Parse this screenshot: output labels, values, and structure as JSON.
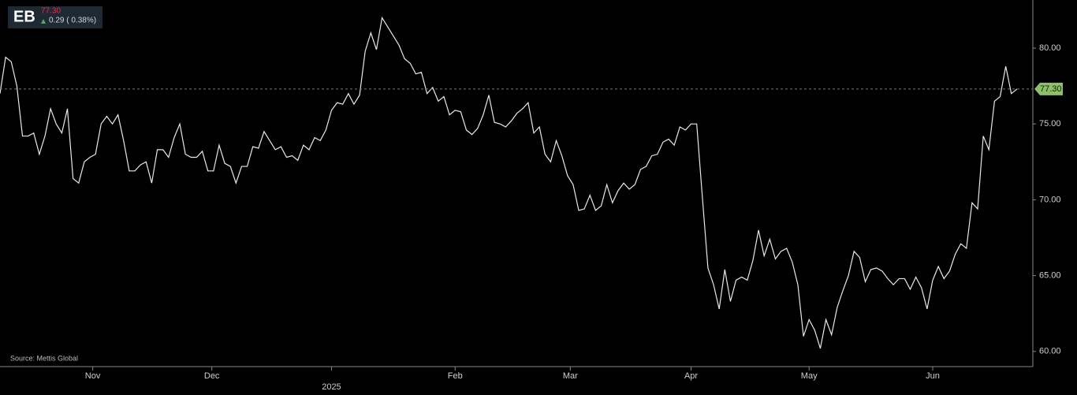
{
  "chart_data": {
    "type": "line",
    "ticker": "EB",
    "price": "77.30",
    "change": "0.29 ( 0.38%)",
    "source": "Source: Mettis Global",
    "series": [
      {
        "name": "EB",
        "color": "#e8e8e8",
        "values": [
          77.0,
          79.4,
          79.1,
          77.5,
          74.2,
          74.2,
          74.4,
          73.0,
          74.2,
          76.0,
          75.0,
          74.4,
          76.0,
          71.4,
          71.1,
          72.5,
          72.8,
          73.0,
          75.0,
          75.5,
          75.0,
          75.6,
          73.9,
          71.9,
          71.9,
          72.3,
          72.5,
          71.1,
          73.3,
          73.3,
          72.8,
          74.1,
          75.0,
          73.0,
          72.8,
          72.8,
          73.2,
          71.9,
          71.9,
          73.6,
          72.4,
          72.2,
          71.1,
          72.2,
          72.2,
          73.5,
          73.4,
          74.5,
          73.9,
          73.3,
          73.5,
          72.8,
          72.9,
          72.6,
          73.6,
          73.3,
          74.1,
          73.9,
          74.6,
          75.9,
          76.4,
          76.3,
          77.0,
          76.3,
          76.9,
          79.8,
          81.0,
          79.9,
          82.0,
          81.4,
          80.8,
          80.2,
          79.3,
          79.0,
          78.3,
          78.4,
          77.0,
          77.4,
          76.5,
          76.8,
          75.6,
          75.9,
          75.8,
          74.6,
          74.3,
          74.7,
          75.6,
          76.9,
          75.1,
          75.0,
          74.8,
          75.2,
          75.7,
          76.0,
          76.4,
          74.4,
          74.8,
          73.0,
          72.5,
          73.9,
          72.9,
          71.6,
          71.0,
          69.3,
          69.4,
          70.3,
          69.3,
          69.6,
          71.0,
          69.8,
          70.6,
          71.1,
          70.7,
          71.0,
          72.0,
          72.2,
          72.9,
          73.0,
          73.8,
          74.0,
          73.6,
          74.8,
          74.6,
          75.0,
          75.0,
          70.2,
          65.5,
          64.4,
          62.8,
          65.4,
          63.3,
          64.7,
          64.9,
          64.7,
          66.0,
          68.0,
          66.3,
          67.4,
          66.1,
          66.6,
          66.8,
          65.9,
          64.4,
          61.0,
          62.1,
          61.4,
          60.2,
          62.1,
          61.1,
          62.9,
          64.0,
          65.0,
          66.6,
          66.2,
          64.6,
          65.4,
          65.5,
          65.3,
          64.8,
          64.4,
          64.8,
          64.8,
          64.1,
          64.9,
          64.2,
          62.8,
          64.7,
          65.6,
          64.8,
          65.3,
          66.4,
          67.1,
          66.8,
          69.8,
          69.4,
          74.2,
          73.3,
          76.5,
          76.8,
          78.8,
          77.0,
          77.3
        ]
      }
    ],
    "last": {
      "value": 77.3,
      "label": "77.30"
    },
    "ylim": [
      59.0,
      83.17
    ],
    "yticks": [
      {
        "value": 60,
        "label": "60.00"
      },
      {
        "value": 65,
        "label": "65.00"
      },
      {
        "value": 70,
        "label": "70.00"
      },
      {
        "value": 75,
        "label": "75.00"
      },
      {
        "value": 80,
        "label": "80.00"
      }
    ],
    "xlim": [
      0,
      182
    ],
    "xticks": [
      {
        "value": 16.5,
        "label": "Nov"
      },
      {
        "value": 37.7,
        "label": "Dec"
      },
      {
        "value": 59,
        "label": "2025"
      },
      {
        "value": 81,
        "label": "Feb"
      },
      {
        "value": 101.5,
        "label": "Mar"
      },
      {
        "value": 123,
        "label": "Apr"
      },
      {
        "value": 144,
        "label": "May"
      },
      {
        "value": 166,
        "label": "Jun"
      }
    ]
  }
}
